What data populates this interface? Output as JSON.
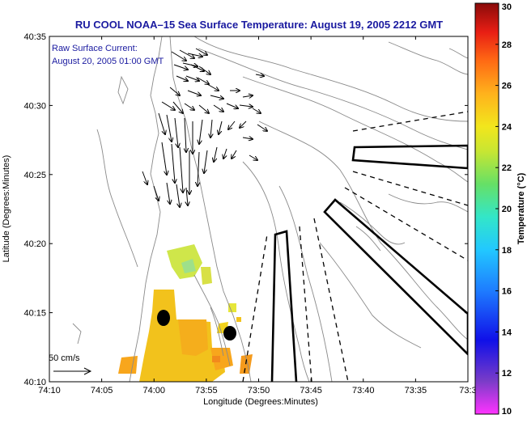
{
  "title": "RU COOL  NOAA–15  Sea Surface Temperature:  August 19, 2005 2212 GMT",
  "current_label": {
    "line1": "Raw Surface Current:",
    "line2": "August 20, 2005 01:00 GMT"
  },
  "scale_label": "50 cm/s",
  "axes": {
    "xlabel": "Longitude (Degrees:Minutes)",
    "ylabel": "Latitude (Degrees:Minutes)",
    "x_ticks": [
      "74:10",
      "74:05",
      "74:00",
      "73:55",
      "73:50",
      "73:45",
      "73:40",
      "73:35",
      "73:3"
    ],
    "y_ticks": [
      "40:35",
      "40:30",
      "40:25",
      "40:20",
      "40:15",
      "40:10"
    ]
  },
  "colorbar": {
    "label": "Temperature (°C)",
    "ticks": [
      "30",
      "28",
      "26",
      "24",
      "22",
      "20",
      "18",
      "16",
      "14",
      "12",
      "10"
    ],
    "min": 10,
    "max": 30
  },
  "colors": {
    "title": "#1a1aa0",
    "land_contour": "#999999",
    "sst_warm": "#f2c21c"
  }
}
